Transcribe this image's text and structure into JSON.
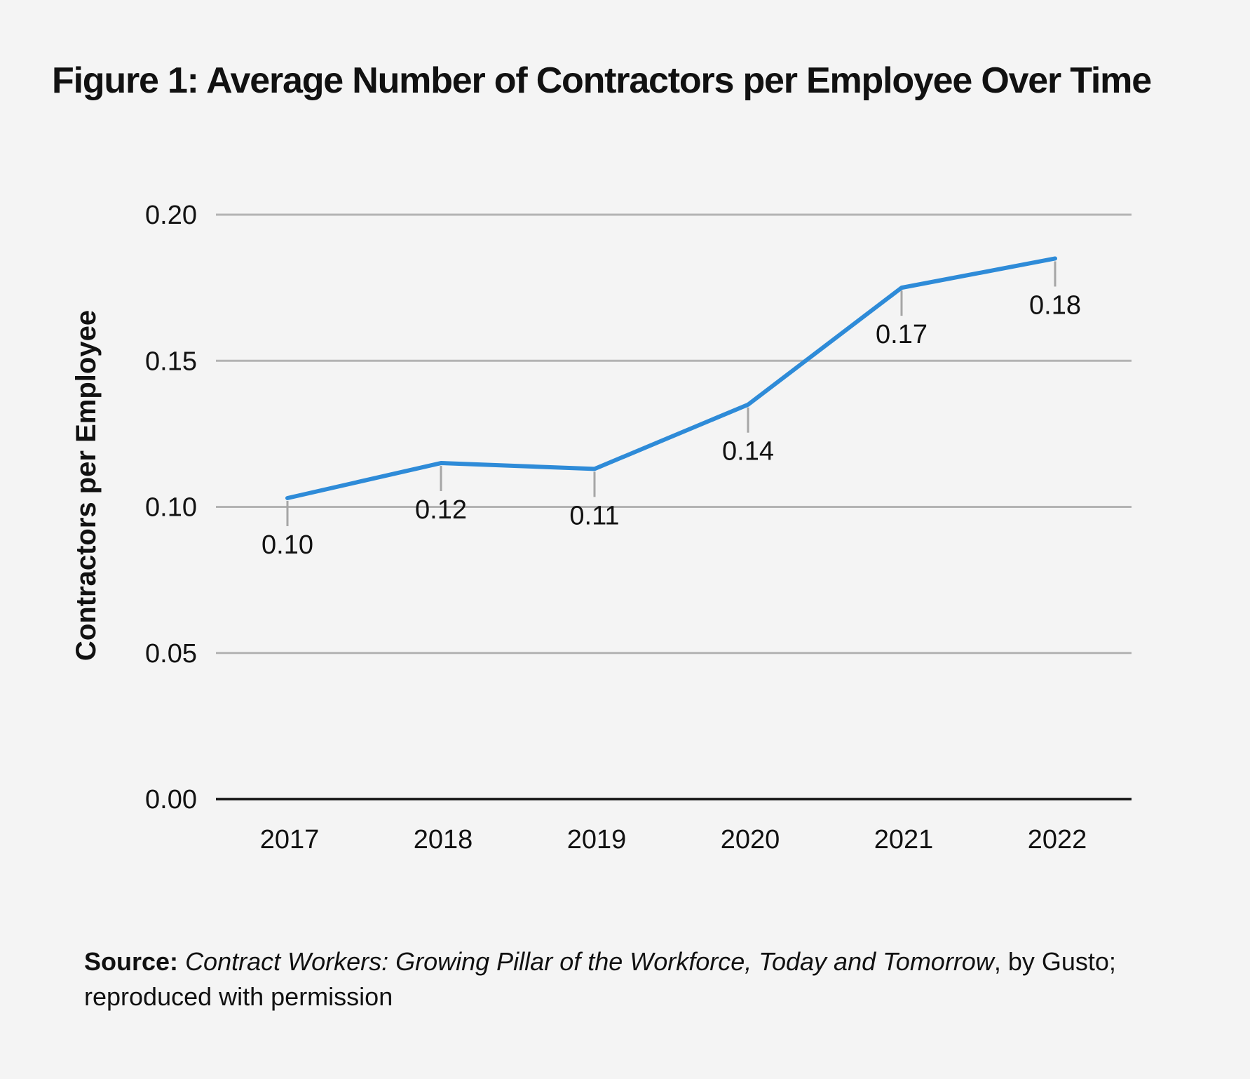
{
  "figure_title": "Figure 1: Average Number of Contractors per Employee Over Time",
  "source": {
    "prefix": "Source:",
    "title": "Contract Workers: Growing Pillar of the Workforce, Today and Tomorrow",
    "rest": ", by Gusto; reproduced with permission"
  },
  "colors": {
    "line": "#2e8bd8",
    "grid": "#b3b3b3",
    "zero_line": "#111111",
    "leader": "#a6a6a6",
    "background": "#f4f4f4"
  },
  "chart_data": {
    "type": "line",
    "title": "Figure 1: Average Number of Contractors per Employee Over Time",
    "xlabel": "",
    "ylabel": "Contractors per Employee",
    "categories": [
      "2017",
      "2018",
      "2019",
      "2020",
      "2021",
      "2022"
    ],
    "series": [
      {
        "values": [
          0.103,
          0.115,
          0.113,
          0.135,
          0.175,
          0.185
        ],
        "labels": [
          "0.10",
          "0.12",
          "0.11",
          "0.14",
          "0.17",
          "0.18"
        ],
        "label_side": [
          "below",
          "below",
          "below",
          "below",
          "below",
          "below"
        ]
      }
    ],
    "ylim": [
      0,
      0.2
    ],
    "yticks": [
      0.0,
      0.05,
      0.1,
      0.15,
      0.2
    ],
    "ytick_labels": [
      "0.00",
      "0.05",
      "0.10",
      "0.15",
      "0.20"
    ],
    "grid": true,
    "legend": "none"
  }
}
